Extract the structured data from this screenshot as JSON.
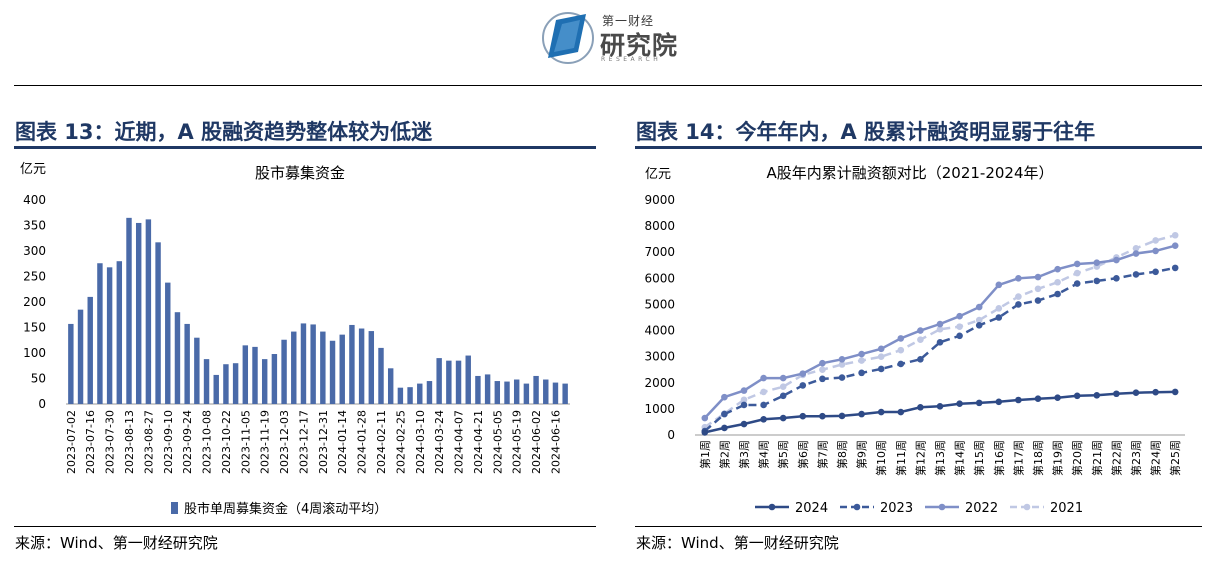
{
  "header": {
    "logo_top": "第一财经",
    "logo_main": "研究院",
    "logo_sub": "RESEARCH",
    "logo_color": "#1f6fb2"
  },
  "left": {
    "fig_title": "图表 13：近期，A 股融资趋势整体较为低迷",
    "source": "来源：Wind、第一财经研究院"
  },
  "right": {
    "fig_title": "图表 14：今年年内，A 股累计融资明显弱于往年",
    "source": "来源：Wind、第一财经研究院"
  },
  "chart_data": [
    {
      "type": "bar",
      "title": "股市募集资金",
      "ylabel": "亿元",
      "xlabel": "",
      "ylim": [
        0,
        400
      ],
      "yticks": [
        0,
        50,
        100,
        150,
        200,
        250,
        300,
        350,
        400
      ],
      "legend": "bottom",
      "color": "#4a6aa8",
      "tick_labels": [
        "2023-07-02",
        "2023-07-16",
        "2023-07-30",
        "2023-08-13",
        "2023-08-27",
        "2023-09-10",
        "2023-09-24",
        "2023-10-08",
        "2023-10-22",
        "2023-11-05",
        "2023-11-19",
        "2023-12-03",
        "2023-12-17",
        "2023-12-31",
        "2024-01-14",
        "2024-01-28",
        "2024-02-11",
        "2024-02-25",
        "2024-03-10",
        "2024-03-24",
        "2024-04-07",
        "2024-04-21",
        "2024-05-05",
        "2024-05-19",
        "2024-06-02",
        "2024-06-16"
      ],
      "series": [
        {
          "name": "股市单周募集资金（4周滚动平均）",
          "values": [
            157,
            185,
            210,
            276,
            268,
            280,
            365,
            355,
            362,
            317,
            238,
            180,
            157,
            130,
            88,
            57,
            78,
            80,
            115,
            112,
            88,
            98,
            126,
            142,
            158,
            156,
            142,
            124,
            136,
            155,
            148,
            143,
            110,
            70,
            32,
            33,
            40,
            45,
            90,
            85,
            85,
            95,
            55,
            58,
            45,
            44,
            48,
            40,
            55,
            48,
            42,
            40
          ]
        }
      ]
    },
    {
      "type": "line",
      "title": "A股年内累计融资额对比（2021-2024年）",
      "ylabel": "亿元",
      "xlabel": "",
      "ylim": [
        0,
        9000
      ],
      "yticks": [
        0,
        1000,
        2000,
        3000,
        4000,
        5000,
        6000,
        7000,
        8000,
        9000
      ],
      "legend": "bottom",
      "categories": [
        "第1周",
        "第2周",
        "第3周",
        "第4周",
        "第5周",
        "第6周",
        "第7周",
        "第8周",
        "第9周",
        "第10周",
        "第11周",
        "第12周",
        "第13周",
        "第14周",
        "第15周",
        "第16周",
        "第17周",
        "第18周",
        "第19周",
        "第20周",
        "第21周",
        "第22周",
        "第23周",
        "第24周",
        "第25周"
      ],
      "series": [
        {
          "name": "2024",
          "color": "#2e4a86",
          "dash": "solid",
          "values": [
            100,
            270,
            420,
            600,
            650,
            720,
            720,
            730,
            800,
            880,
            880,
            1060,
            1100,
            1200,
            1230,
            1270,
            1340,
            1390,
            1430,
            1500,
            1520,
            1580,
            1620,
            1640,
            1650
          ]
        },
        {
          "name": "2023",
          "color": "#3c5a9a",
          "dash": "dashed",
          "values": [
            150,
            800,
            1150,
            1150,
            1500,
            1900,
            2150,
            2200,
            2380,
            2530,
            2720,
            2900,
            3550,
            3800,
            4200,
            4500,
            5000,
            5150,
            5400,
            5800,
            5900,
            6000,
            6150,
            6250,
            6400
          ]
        },
        {
          "name": "2022",
          "color": "#7f8fc7",
          "dash": "solid",
          "values": [
            650,
            1450,
            1700,
            2180,
            2180,
            2350,
            2750,
            2900,
            3100,
            3300,
            3700,
            4000,
            4250,
            4550,
            4900,
            5750,
            6000,
            6050,
            6350,
            6550,
            6600,
            6700,
            6950,
            7050,
            7250
          ]
        },
        {
          "name": "2021",
          "color": "#c0c8e4",
          "dash": "dashed",
          "values": [
            300,
            820,
            1350,
            1650,
            1850,
            2300,
            2500,
            2700,
            2850,
            3000,
            3250,
            3650,
            4050,
            4150,
            4400,
            4850,
            5300,
            5600,
            5850,
            6200,
            6450,
            6800,
            7150,
            7450,
            7650
          ]
        }
      ]
    }
  ]
}
